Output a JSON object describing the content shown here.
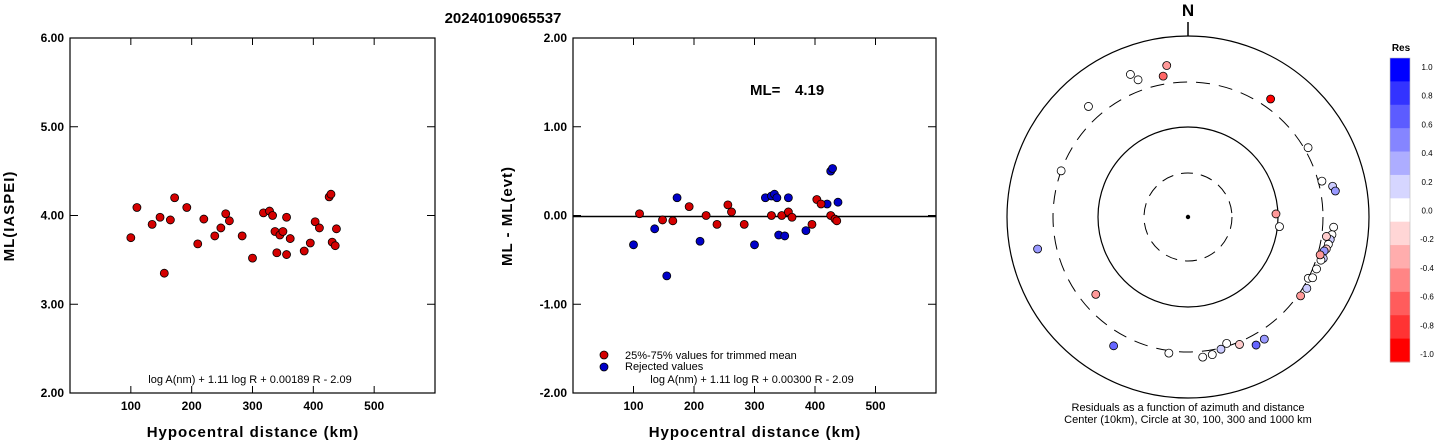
{
  "event_title": "20240109065537",
  "chart_data": [
    {
      "type": "scatter",
      "ylabel": "ML(IASPEI)",
      "xlabel": "Hypocentral distance (km)",
      "xlim": [
        0,
        600
      ],
      "ylim": [
        2.0,
        6.0
      ],
      "xticks": [
        "100",
        "200",
        "300",
        "400",
        "500"
      ],
      "yticks": [
        "2.00",
        "3.00",
        "4.00",
        "5.00",
        "6.00"
      ],
      "formula": "log A(nm) + 1.11 log R + 0.00189 R - 2.09",
      "color": "#d40000",
      "points": [
        [
          100,
          3.75
        ],
        [
          110,
          4.09
        ],
        [
          135,
          3.9
        ],
        [
          148,
          3.98
        ],
        [
          155,
          3.35
        ],
        [
          165,
          3.95
        ],
        [
          172,
          4.2
        ],
        [
          192,
          4.09
        ],
        [
          210,
          3.68
        ],
        [
          220,
          3.96
        ],
        [
          238,
          3.77
        ],
        [
          248,
          3.86
        ],
        [
          256,
          4.02
        ],
        [
          262,
          3.94
        ],
        [
          283,
          3.77
        ],
        [
          300,
          3.52
        ],
        [
          318,
          4.03
        ],
        [
          328,
          4.05
        ],
        [
          333,
          4.0
        ],
        [
          337,
          3.82
        ],
        [
          340,
          3.58
        ],
        [
          345,
          3.78
        ],
        [
          350,
          3.82
        ],
        [
          356,
          3.56
        ],
        [
          356,
          3.98
        ],
        [
          362,
          3.74
        ],
        [
          385,
          3.6
        ],
        [
          395,
          3.69
        ],
        [
          403,
          3.93
        ],
        [
          410,
          3.86
        ],
        [
          426,
          4.21
        ],
        [
          429,
          4.24
        ],
        [
          431,
          3.7
        ],
        [
          436,
          3.66
        ],
        [
          438,
          3.85
        ]
      ]
    },
    {
      "type": "scatter",
      "ylabel": "ML - ML(evt)",
      "xlabel": "Hypocentral distance (km)",
      "xlim": [
        0,
        600
      ],
      "ylim": [
        -2.0,
        2.0
      ],
      "xticks": [
        "100",
        "200",
        "300",
        "400",
        "500"
      ],
      "yticks": [
        "-2.00",
        "-1.00",
        "0.00",
        "1.00",
        "2.00"
      ],
      "ml_label": "ML=",
      "ml_value": "4.19",
      "legend": [
        "25%-75% values for trimmed mean",
        "Rejected values"
      ],
      "formula": "log A(nm) + 1.11 log R + 0.00300 R - 2.09",
      "colors": {
        "trimmed": "#d40000",
        "rejected": "#0000c8"
      },
      "trimmed": [
        [
          110,
          0.02
        ],
        [
          148,
          -0.05
        ],
        [
          165,
          -0.06
        ],
        [
          192,
          0.1
        ],
        [
          220,
          0.0
        ],
        [
          238,
          -0.1
        ],
        [
          256,
          0.12
        ],
        [
          262,
          0.04
        ],
        [
          283,
          -0.1
        ],
        [
          328,
          0.0
        ],
        [
          345,
          0.0
        ],
        [
          356,
          0.04
        ],
        [
          362,
          -0.02
        ],
        [
          395,
          -0.1
        ],
        [
          403,
          0.18
        ],
        [
          410,
          0.13
        ],
        [
          426,
          0.0
        ],
        [
          433,
          -0.04
        ],
        [
          436,
          -0.06
        ]
      ],
      "rejected": [
        [
          100,
          -0.33
        ],
        [
          135,
          -0.15
        ],
        [
          155,
          -0.68
        ],
        [
          172,
          0.2
        ],
        [
          210,
          -0.29
        ],
        [
          300,
          -0.33
        ],
        [
          318,
          0.2
        ],
        [
          328,
          0.22
        ],
        [
          333,
          0.24
        ],
        [
          337,
          0.2
        ],
        [
          340,
          -0.22
        ],
        [
          350,
          -0.23
        ],
        [
          356,
          0.2
        ],
        [
          385,
          -0.17
        ],
        [
          420,
          0.13
        ],
        [
          426,
          0.5
        ],
        [
          429,
          0.53
        ],
        [
          438,
          0.15
        ]
      ]
    },
    {
      "type": "polar-scatter",
      "north_label": "N",
      "caption_line1": "Residuals as a function of azimuth and distance",
      "caption_line2": "Center (10km), Circle at 30, 100, 300 and 1000 km",
      "colorbar_title": "Res",
      "colorbar_ticks": [
        "1.0",
        "0.8",
        "0.6",
        "0.4",
        "0.2",
        "0.0",
        "-0.2",
        "-0.4",
        "-0.6",
        "-0.8",
        "-1.0"
      ],
      "colorbar_colors": [
        "#0000ff",
        "#3333ff",
        "#5c5cff",
        "#8585ff",
        "#adadff",
        "#d6d6ff",
        "#ffffff",
        "#ffd6d6",
        "#ffadad",
        "#ff8585",
        "#ff5c5c",
        "#ff3333",
        "#ff0000"
      ],
      "points": [
        {
          "az": 338,
          "dist": 490,
          "res": 0.0
        },
        {
          "az": 352,
          "dist": 480,
          "res": -0.4
        },
        {
          "az": 340,
          "dist": 400,
          "res": 0.0
        },
        {
          "az": 350,
          "dist": 370,
          "res": -0.6
        },
        {
          "az": 318,
          "dist": 430,
          "res": 0.0
        },
        {
          "az": 290,
          "dist": 300,
          "res": 0.0
        },
        {
          "az": 35,
          "dist": 380,
          "res": -1.0
        },
        {
          "az": 60,
          "dist": 330,
          "res": 0.0
        },
        {
          "az": 75,
          "dist": 330,
          "res": 0.0
        },
        {
          "az": 78,
          "dist": 420,
          "res": 0.2
        },
        {
          "az": 80,
          "dist": 440,
          "res": 0.4
        },
        {
          "az": 88,
          "dist": 95,
          "res": -0.4
        },
        {
          "az": 96,
          "dist": 105,
          "res": 0.0
        },
        {
          "az": 94,
          "dist": 400,
          "res": 0.0
        },
        {
          "az": 97,
          "dist": 390,
          "res": 0.0
        },
        {
          "az": 99,
          "dist": 380,
          "res": 0.2
        },
        {
          "az": 101,
          "dist": 370,
          "res": 0.0
        },
        {
          "az": 103,
          "dist": 360,
          "res": -0.2
        },
        {
          "az": 98,
          "dist": 340,
          "res": -0.2
        },
        {
          "az": 104,
          "dist": 345,
          "res": 0.4
        },
        {
          "az": 107,
          "dist": 355,
          "res": 0.2
        },
        {
          "az": 108,
          "dist": 340,
          "res": 0.0
        },
        {
          "az": 106,
          "dist": 320,
          "res": -0.4
        },
        {
          "az": 112,
          "dist": 330,
          "res": 0.0
        },
        {
          "az": 117,
          "dist": 300,
          "res": 0.0
        },
        {
          "az": 116,
          "dist": 330,
          "res": 0.0
        },
        {
          "az": 121,
          "dist": 330,
          "res": 0.2
        },
        {
          "az": 125,
          "dist": 320,
          "res": -0.4
        },
        {
          "az": 148,
          "dist": 380,
          "res": 0.4
        },
        {
          "az": 152,
          "dist": 390,
          "res": 0.6
        },
        {
          "az": 158,
          "dist": 320,
          "res": -0.2
        },
        {
          "az": 163,
          "dist": 280,
          "res": 0.0
        },
        {
          "az": 166,
          "dist": 310,
          "res": 0.2
        },
        {
          "az": 170,
          "dist": 340,
          "res": 0.0
        },
        {
          "az": 174,
          "dist": 350,
          "res": 0.0
        },
        {
          "az": 188,
          "dist": 320,
          "res": 0.0
        },
        {
          "az": 210,
          "dist": 430,
          "res": 0.6
        },
        {
          "az": 230,
          "dist": 210,
          "res": -0.4
        },
        {
          "az": 258,
          "dist": 490,
          "res": 0.4
        }
      ]
    }
  ]
}
